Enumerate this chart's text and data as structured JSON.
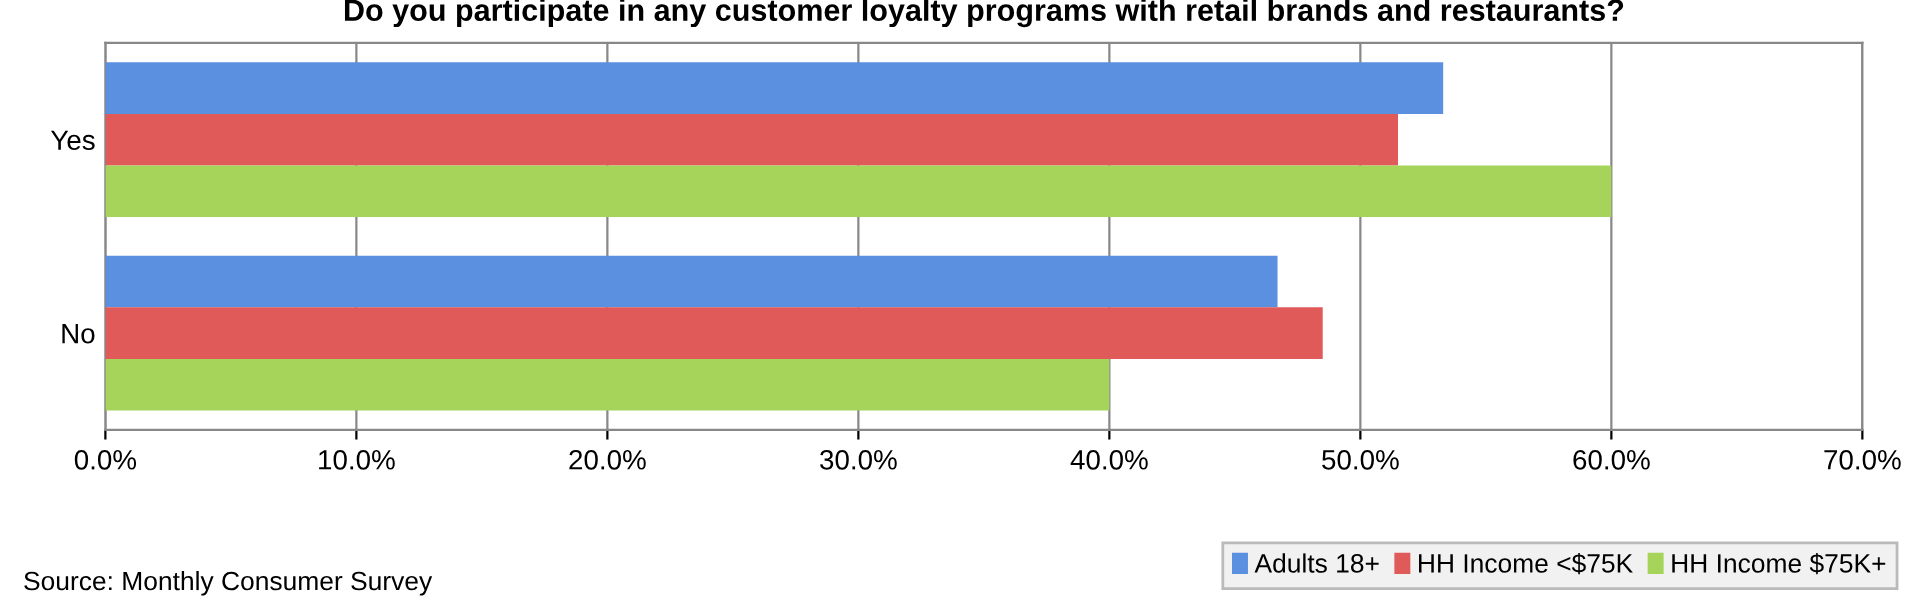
{
  "chart_data": {
    "type": "bar",
    "orientation": "horizontal",
    "title": "Do you participate in any customer loyalty programs with retail brands and restaurants?",
    "categories": [
      "Yes",
      "No"
    ],
    "series": [
      {
        "name": "Adults 18+",
        "color": "#5b8fe0",
        "values": [
          53.3,
          46.7
        ]
      },
      {
        "name": "HH Income <$75K",
        "color": "#e05a5a",
        "values": [
          51.5,
          48.5
        ]
      },
      {
        "name": "HH Income $75K+",
        "color": "#a6d45a",
        "values": [
          60,
          40
        ]
      }
    ],
    "xlim": [
      0,
      70
    ],
    "xticks": [
      {
        "value": 0,
        "label": "0.0%"
      },
      {
        "value": 10,
        "label": "10.0%"
      },
      {
        "value": 20,
        "label": "20.0%"
      },
      {
        "value": 30,
        "label": "30.0%"
      },
      {
        "value": 40,
        "label": "40.0%"
      },
      {
        "value": 50,
        "label": "50.0%"
      },
      {
        "value": 60,
        "label": "60.0%"
      },
      {
        "value": 70,
        "label": "70.0%"
      }
    ],
    "grid": "x",
    "legend": "bottom right",
    "annotations": [
      "Source: Monthly Consumer Survey"
    ]
  }
}
